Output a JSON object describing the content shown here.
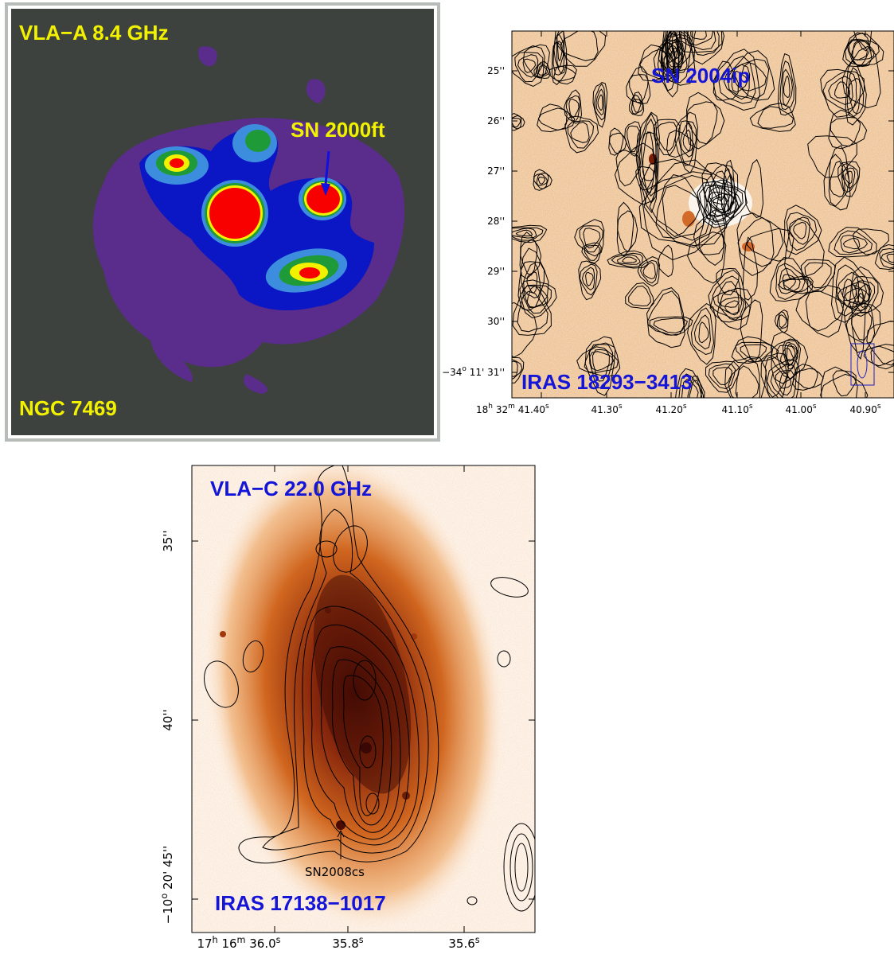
{
  "top_left": {
    "band": "VLA−A 8.4 GHz",
    "supernova": "SN 2000ft",
    "galaxy": "NGC 7469"
  },
  "top_right": {
    "supernova": "SN 2004ip",
    "galaxy": "IRAS 18293−3413",
    "y_ticks": [
      [
        "25''"
      ],
      [
        "26''"
      ],
      [
        "27''"
      ],
      [
        "28''"
      ],
      [
        "29''"
      ],
      [
        "30''"
      ],
      [
        "−34",
        "o",
        " 11' 31''"
      ]
    ],
    "x_ticks": [
      [
        "18",
        "h",
        " 32",
        "m",
        " 41.40",
        "s"
      ],
      [
        "41.30",
        "s"
      ],
      [
        "41.20",
        "s"
      ],
      [
        "41.10",
        "s"
      ],
      [
        "41.00",
        "s"
      ],
      [
        "40.90",
        "s"
      ]
    ]
  },
  "bottom": {
    "band": "VLA−C 22.0 GHz",
    "galaxy": "IRAS 17138−1017",
    "supernova": "SN2008cs",
    "y_ticks": [
      [
        "35''"
      ],
      [
        "40''"
      ],
      [
        "−10",
        "o",
        " 20' 45''"
      ]
    ],
    "x_ticks": [
      [
        "17",
        "h",
        " 16",
        "m",
        " 36.0",
        "s"
      ],
      [
        "35.8",
        "s"
      ],
      [
        "35.6",
        "s"
      ]
    ]
  }
}
